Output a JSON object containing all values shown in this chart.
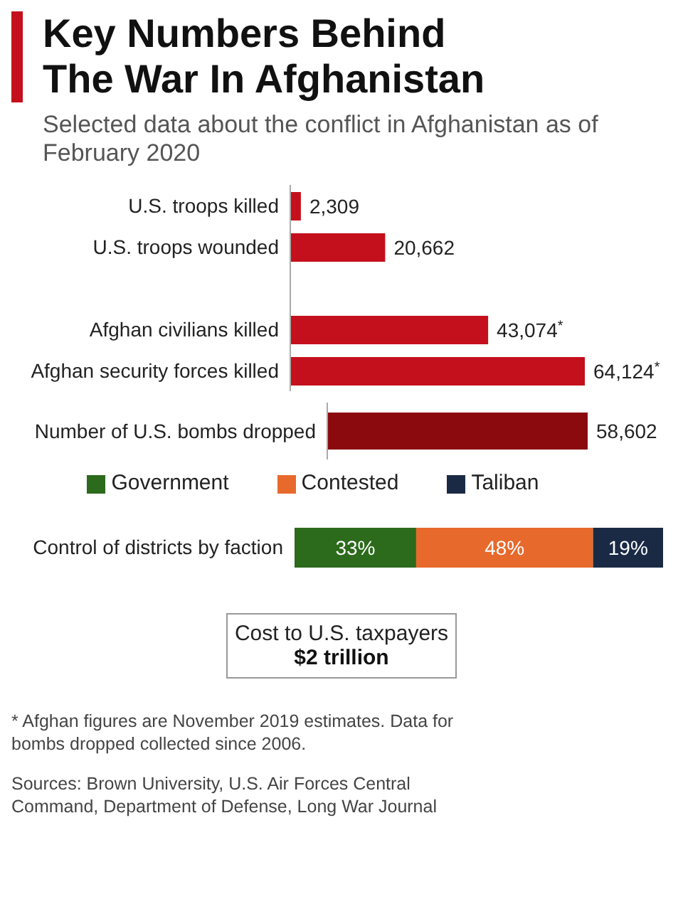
{
  "chart_data": [
    {
      "type": "bar",
      "orientation": "horizontal",
      "title": "Key Numbers Behind The War In Afghanistan",
      "subtitle": "Selected data about the conflict in Afghanistan as of February 2020",
      "categories": [
        "U.S. troops killed",
        "U.S. troops wounded",
        null,
        "Afghan civilians killed",
        "Afghan security forces killed"
      ],
      "values": [
        2309,
        20662,
        null,
        43074,
        64124
      ],
      "value_labels": [
        "2,309",
        "20,662",
        null,
        "43,074$^{*}$",
        "64,124$^{*}$"
      ],
      "color": "#c4101c"
    },
    {
      "type": "bar",
      "orientation": "horizontal",
      "categories": [
        "Number of U.S. bombs dropped"
      ],
      "values": [
        58602
      ],
      "value_labels": [
        "58,602"
      ],
      "color": "#8a0a0e"
    },
    {
      "type": "bar",
      "orientation": "horizontal",
      "stacked": true,
      "legend": "top",
      "categories": [
        "Control of districts by faction"
      ],
      "series": [
        {
          "name": "Government",
          "color": "#2c6a1c",
          "values": [
            33
          ],
          "value_labels": [
            "33%"
          ]
        },
        {
          "name": "Contested",
          "color": "#e8692c",
          "values": [
            48
          ],
          "value_labels": [
            "48%"
          ]
        },
        {
          "name": "Taliban",
          "color": "#1a2a45",
          "values": [
            19
          ],
          "value_labels": [
            "19%"
          ]
        }
      ]
    },
    {
      "type": "other",
      "title": "Cost to U.S. taxpayers",
      "subtitle": "$2 trillion",
      "annotations": [
        "* Afghan figures are November 2019 estimates. Data for bombs dropped collected since 2006.",
        "Sources: Brown University, U.S. Air Forces Central Command, Department of Defense, Long War Journal"
      ]
    }
  ]
}
